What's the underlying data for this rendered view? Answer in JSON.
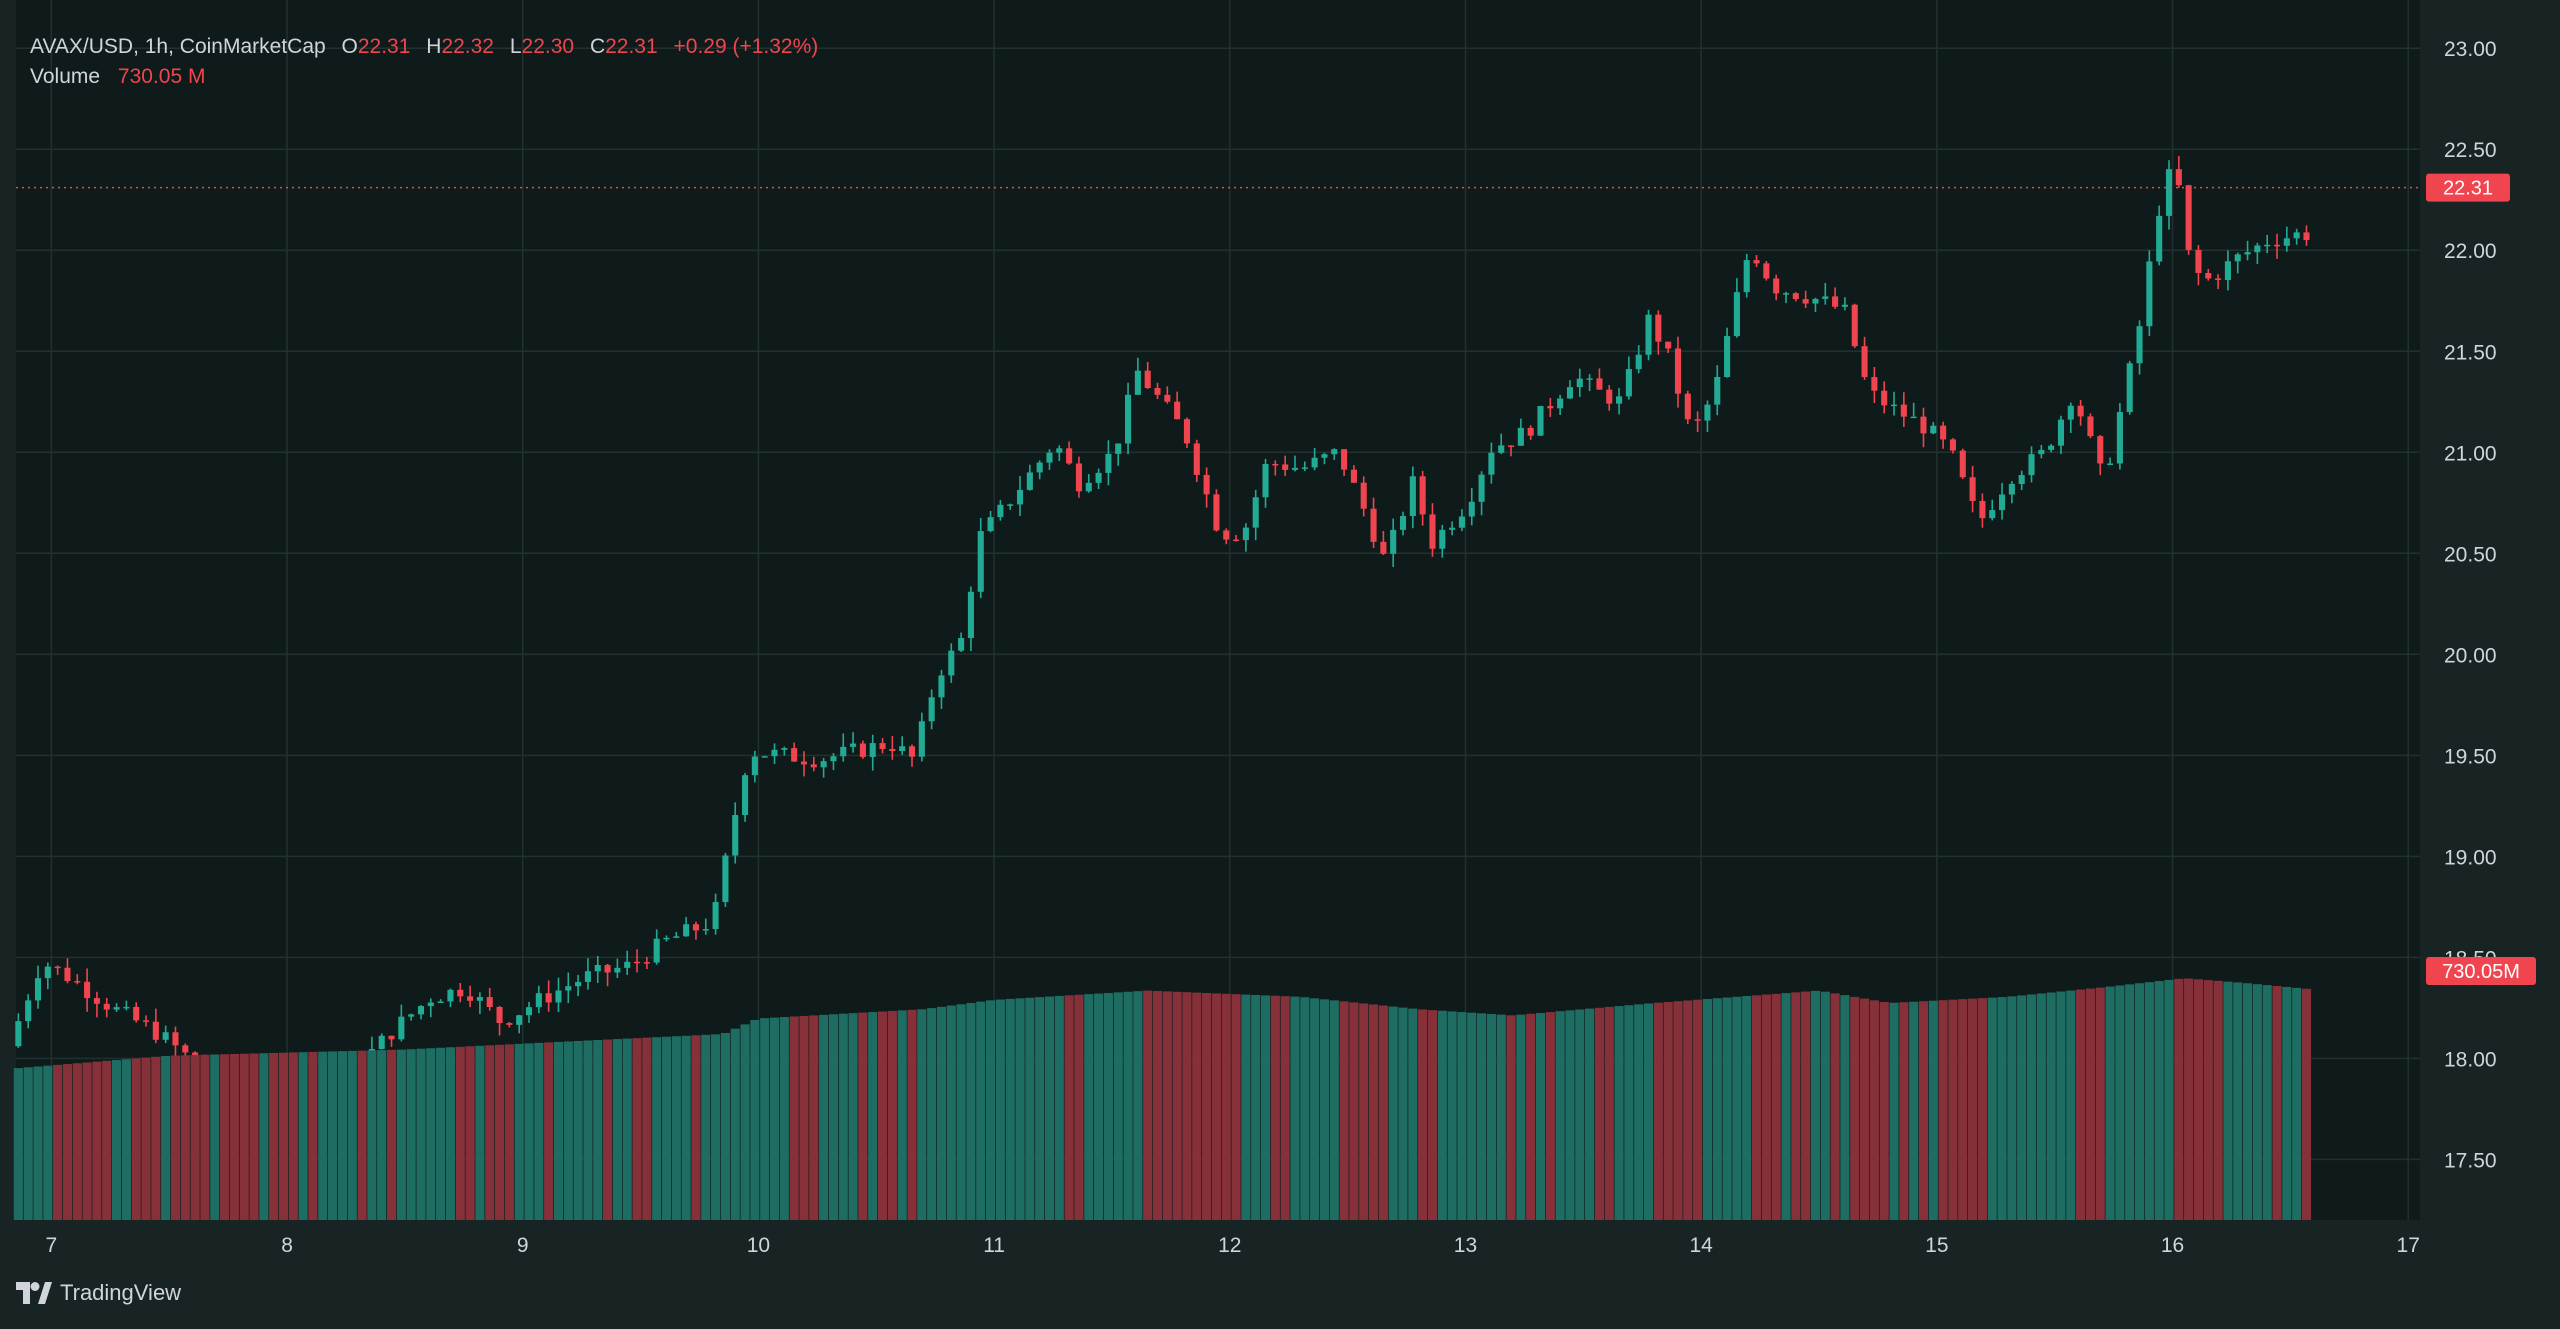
{
  "legend": {
    "symbol": "AVAX/USD, 1h, CoinMarketCap",
    "open_label": "O",
    "open": "22.31",
    "high_label": "H",
    "high": "22.32",
    "low_label": "L",
    "low": "22.30",
    "close_label": "C",
    "close": "22.31",
    "change": "+0.29 (+1.32%)",
    "volume_label": "Volume",
    "volume": "730.05 M"
  },
  "colors": {
    "background": "#172423",
    "up": "#22ab94",
    "down": "#f0444f",
    "up_volume": "#1e6d62",
    "down_volume": "#86313a",
    "text": "#d1d4dc",
    "grid": "#22302f"
  },
  "brand": {
    "name": "TradingView",
    "icon": "tradingview-logo-icon"
  },
  "chart_data": {
    "type": "candlestick",
    "title": "AVAX/USD, 1h, CoinMarketCap",
    "interval": "1h",
    "x_tick_labels": [
      "7",
      "8",
      "9",
      "10",
      "11",
      "12",
      "13",
      "14",
      "15",
      "16",
      "17"
    ],
    "y_tick_labels": [
      "17.50",
      "18.00",
      "18.50",
      "19.00",
      "19.50",
      "20.00",
      "20.50",
      "21.00",
      "21.50",
      "22.00",
      "22.50",
      "23.00"
    ],
    "ylim": [
      17.2,
      23.1
    ],
    "x_range_days": [
      6.85,
      17.05
    ],
    "last_price": 22.31,
    "last_price_label": "22.31",
    "volume_label": "730.05M",
    "grid": true,
    "price_axis": "right",
    "price_anchors": [
      [
        6.86,
        18.06
      ],
      [
        7.0,
        18.48
      ],
      [
        7.12,
        18.4
      ],
      [
        7.3,
        18.25
      ],
      [
        7.5,
        18.12
      ],
      [
        7.7,
        17.93
      ],
      [
        7.9,
        17.88
      ],
      [
        8.1,
        17.76
      ],
      [
        8.3,
        17.91
      ],
      [
        8.5,
        18.15
      ],
      [
        8.65,
        18.3
      ],
      [
        8.8,
        18.35
      ],
      [
        8.95,
        18.18
      ],
      [
        9.1,
        18.28
      ],
      [
        9.3,
        18.4
      ],
      [
        9.5,
        18.46
      ],
      [
        9.65,
        18.58
      ],
      [
        9.85,
        18.68
      ],
      [
        9.95,
        19.25
      ],
      [
        10.0,
        19.52
      ],
      [
        10.3,
        19.48
      ],
      [
        10.6,
        19.56
      ],
      [
        10.7,
        19.48
      ],
      [
        10.8,
        19.9
      ],
      [
        10.9,
        20.06
      ],
      [
        10.98,
        20.58
      ],
      [
        11.1,
        20.75
      ],
      [
        11.3,
        21.05
      ],
      [
        11.4,
        20.85
      ],
      [
        11.55,
        21.0
      ],
      [
        11.65,
        21.4
      ],
      [
        11.85,
        21.1
      ],
      [
        12.0,
        20.6
      ],
      [
        12.1,
        20.6
      ],
      [
        12.2,
        20.95
      ],
      [
        12.35,
        20.92
      ],
      [
        12.5,
        21.0
      ],
      [
        12.6,
        20.75
      ],
      [
        12.7,
        20.46
      ],
      [
        12.82,
        20.85
      ],
      [
        12.9,
        20.55
      ],
      [
        13.05,
        20.75
      ],
      [
        13.15,
        21.02
      ],
      [
        13.3,
        21.1
      ],
      [
        13.5,
        21.38
      ],
      [
        13.6,
        21.3
      ],
      [
        13.7,
        21.25
      ],
      [
        13.82,
        21.66
      ],
      [
        13.9,
        21.48
      ],
      [
        14.0,
        21.08
      ],
      [
        14.1,
        21.3
      ],
      [
        14.2,
        21.8
      ],
      [
        14.25,
        22.02
      ],
      [
        14.35,
        21.82
      ],
      [
        14.55,
        21.75
      ],
      [
        14.65,
        21.7
      ],
      [
        14.75,
        21.3
      ],
      [
        14.85,
        21.22
      ],
      [
        15.0,
        21.12
      ],
      [
        15.1,
        21.0
      ],
      [
        15.22,
        20.65
      ],
      [
        15.35,
        20.88
      ],
      [
        15.5,
        21.0
      ],
      [
        15.62,
        21.3
      ],
      [
        15.75,
        20.85
      ],
      [
        15.85,
        21.35
      ],
      [
        15.92,
        21.72
      ],
      [
        15.97,
        22.15
      ],
      [
        16.05,
        22.45
      ],
      [
        16.12,
        21.9
      ],
      [
        16.2,
        21.85
      ],
      [
        16.3,
        21.95
      ],
      [
        16.45,
        22.05
      ],
      [
        16.58,
        22.08
      ]
    ],
    "volume_anchors": [
      [
        6.86,
        0.49
      ],
      [
        7.5,
        0.53
      ],
      [
        8.0,
        0.54
      ],
      [
        8.5,
        0.55
      ],
      [
        9.3,
        0.58
      ],
      [
        9.85,
        0.6
      ],
      [
        10.0,
        0.65
      ],
      [
        10.7,
        0.68
      ],
      [
        11.0,
        0.71
      ],
      [
        11.65,
        0.74
      ],
      [
        12.3,
        0.72
      ],
      [
        12.8,
        0.68
      ],
      [
        13.2,
        0.66
      ],
      [
        13.8,
        0.7
      ],
      [
        14.5,
        0.74
      ],
      [
        14.8,
        0.7
      ],
      [
        15.3,
        0.72
      ],
      [
        15.7,
        0.75
      ],
      [
        16.05,
        0.78
      ],
      [
        16.3,
        0.765
      ],
      [
        16.58,
        0.745
      ]
    ]
  }
}
